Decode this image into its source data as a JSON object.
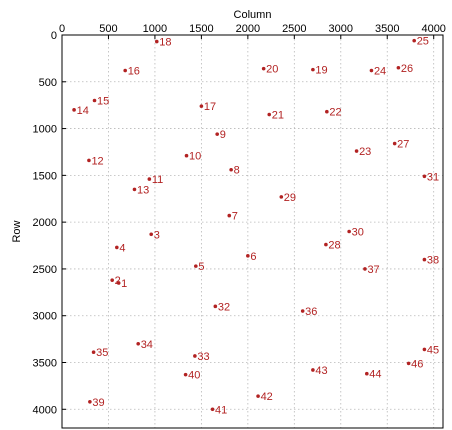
{
  "chart_data": {
    "type": "scatter",
    "title": "",
    "xlabel": "Column",
    "ylabel": "Row",
    "xlim": [
      0,
      4100
    ],
    "ylim": [
      0,
      4200
    ],
    "y_reversed": true,
    "x_axis_position": "top",
    "grid": true,
    "marker_color": "#b22222",
    "xticks": [
      0,
      500,
      1000,
      1500,
      2000,
      2500,
      3000,
      3500,
      4000
    ],
    "yticks": [
      0,
      500,
      1000,
      1500,
      2000,
      2500,
      3000,
      3500,
      4000
    ],
    "points": [
      {
        "label": "1",
        "x": 610,
        "y": 2650
      },
      {
        "label": "2",
        "x": 540,
        "y": 2620
      },
      {
        "label": "3",
        "x": 960,
        "y": 2130
      },
      {
        "label": "4",
        "x": 590,
        "y": 2270
      },
      {
        "label": "5",
        "x": 1440,
        "y": 2470
      },
      {
        "label": "6",
        "x": 2000,
        "y": 2360
      },
      {
        "label": "7",
        "x": 1800,
        "y": 1930
      },
      {
        "label": "8",
        "x": 1820,
        "y": 1440
      },
      {
        "label": "9",
        "x": 1670,
        "y": 1060
      },
      {
        "label": "10",
        "x": 1340,
        "y": 1290
      },
      {
        "label": "11",
        "x": 940,
        "y": 1540
      },
      {
        "label": "12",
        "x": 290,
        "y": 1340
      },
      {
        "label": "13",
        "x": 780,
        "y": 1650
      },
      {
        "label": "14",
        "x": 130,
        "y": 800
      },
      {
        "label": "15",
        "x": 350,
        "y": 700
      },
      {
        "label": "16",
        "x": 680,
        "y": 380
      },
      {
        "label": "17",
        "x": 1500,
        "y": 760
      },
      {
        "label": "18",
        "x": 1020,
        "y": 70
      },
      {
        "label": "19",
        "x": 2700,
        "y": 370
      },
      {
        "label": "20",
        "x": 2170,
        "y": 360
      },
      {
        "label": "21",
        "x": 2230,
        "y": 850
      },
      {
        "label": "22",
        "x": 2850,
        "y": 820
      },
      {
        "label": "23",
        "x": 3170,
        "y": 1240
      },
      {
        "label": "24",
        "x": 3330,
        "y": 380
      },
      {
        "label": "25",
        "x": 3790,
        "y": 60
      },
      {
        "label": "26",
        "x": 3620,
        "y": 350
      },
      {
        "label": "27",
        "x": 3580,
        "y": 1160
      },
      {
        "label": "28",
        "x": 2840,
        "y": 2240
      },
      {
        "label": "29",
        "x": 2360,
        "y": 1730
      },
      {
        "label": "30",
        "x": 3090,
        "y": 2100
      },
      {
        "label": "31",
        "x": 3900,
        "y": 1510
      },
      {
        "label": "32",
        "x": 1650,
        "y": 2900
      },
      {
        "label": "33",
        "x": 1430,
        "y": 3430
      },
      {
        "label": "34",
        "x": 820,
        "y": 3300
      },
      {
        "label": "35",
        "x": 340,
        "y": 3390
      },
      {
        "label": "36",
        "x": 2590,
        "y": 2950
      },
      {
        "label": "37",
        "x": 3260,
        "y": 2500
      },
      {
        "label": "38",
        "x": 3900,
        "y": 2400
      },
      {
        "label": "39",
        "x": 300,
        "y": 3920
      },
      {
        "label": "40",
        "x": 1330,
        "y": 3630
      },
      {
        "label": "41",
        "x": 1620,
        "y": 4000
      },
      {
        "label": "42",
        "x": 2110,
        "y": 3860
      },
      {
        "label": "43",
        "x": 2700,
        "y": 3580
      },
      {
        "label": "44",
        "x": 3280,
        "y": 3620
      },
      {
        "label": "45",
        "x": 3900,
        "y": 3360
      },
      {
        "label": "46",
        "x": 3730,
        "y": 3510
      }
    ]
  }
}
